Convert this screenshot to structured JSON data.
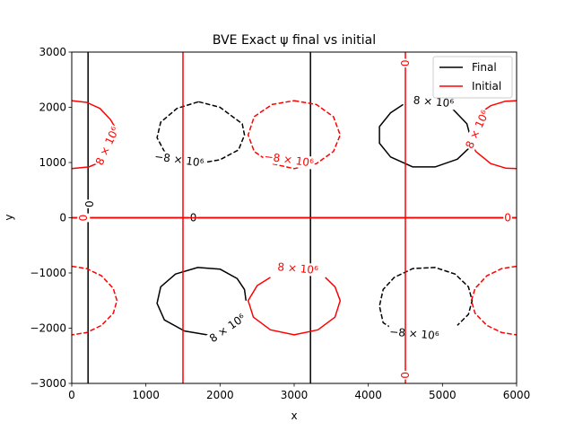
{
  "chart_data": {
    "type": "contour",
    "title": "BVE Exact ψ final vs initial",
    "xlabel": "x",
    "ylabel": "y",
    "xlim": [
      0,
      6000
    ],
    "ylim": [
      -3000,
      3000
    ],
    "xticks": [
      0,
      1000,
      2000,
      3000,
      4000,
      5000,
      6000
    ],
    "xtick_labels": [
      "0",
      "1000",
      "2000",
      "3000",
      "4000",
      "5000",
      "6000"
    ],
    "yticks": [
      -3000,
      -2000,
      -1000,
      0,
      1000,
      2000,
      3000
    ],
    "ytick_labels": [
      "−3000",
      "−2000",
      "−1000",
      "0",
      "1000",
      "2000",
      "3000"
    ],
    "grid": false,
    "legend_position": "upper right",
    "series": [
      {
        "name": "Final",
        "color": "#000000",
        "zero_contours": {
          "vertical_x": [
            220,
            3220
          ],
          "horizontal_y": [
            0
          ]
        },
        "level_contours": [
          {
            "level": "-8e6",
            "sign": "negative",
            "dashed": true,
            "points": [
              [
                1710,
                2100
              ],
              [
                2000,
                2000
              ],
              [
                2300,
                1700
              ],
              [
                2330,
                1500
              ],
              [
                2250,
                1230
              ],
              [
                2000,
                1050
              ],
              [
                1700,
                980
              ],
              [
                1440,
                1060
              ],
              [
                1250,
                1200
              ],
              [
                1150,
                1450
              ],
              [
                1200,
                1730
              ],
              [
                1420,
                1980
              ],
              [
                1710,
                2100
              ]
            ]
          },
          {
            "level": "8e6",
            "sign": "positive",
            "dashed": false,
            "points": [
              [
                4470,
                2050
              ],
              [
                4300,
                1900
              ],
              [
                4150,
                1650
              ],
              [
                4150,
                1350
              ],
              [
                4300,
                1100
              ],
              [
                4600,
                920
              ],
              [
                4900,
                920
              ],
              [
                5200,
                1060
              ],
              [
                5350,
                1250
              ],
              [
                5380,
                1450
              ],
              [
                5330,
                1700
              ],
              [
                5130,
                1980
              ],
              [
                5020,
                2030
              ]
            ]
          },
          {
            "level": "8e6",
            "sign": "positive",
            "dashed": false,
            "points": [
              [
                1870,
                -2130
              ],
              [
                1520,
                -2050
              ],
              [
                1250,
                -1850
              ],
              [
                1150,
                -1550
              ],
              [
                1200,
                -1250
              ],
              [
                1400,
                -1020
              ],
              [
                1700,
                -900
              ],
              [
                2000,
                -930
              ],
              [
                2230,
                -1100
              ],
              [
                2330,
                -1300
              ],
              [
                2350,
                -1500
              ]
            ]
          },
          {
            "level": "-8e6",
            "sign": "negative",
            "dashed": true,
            "points": [
              [
                4400,
                -2070
              ],
              [
                4200,
                -1900
              ],
              [
                4150,
                -1600
              ],
              [
                4200,
                -1300
              ],
              [
                4350,
                -1080
              ],
              [
                4600,
                -920
              ],
              [
                4900,
                -900
              ],
              [
                5170,
                -1020
              ],
              [
                5350,
                -1250
              ],
              [
                5400,
                -1500
              ],
              [
                5350,
                -1750
              ],
              [
                5200,
                -1950
              ]
            ]
          }
        ],
        "labels": [
          {
            "text": "−8 × 10⁶",
            "x": 1450,
            "y": 1050,
            "rotate": 8
          },
          {
            "text": "8 × 10⁶",
            "x": 4880,
            "y": 2100,
            "rotate": 5
          },
          {
            "text": "8 × 10⁶",
            "x": 2100,
            "y": -2000,
            "rotate": -35
          },
          {
            "text": "−8 × 10⁶",
            "x": 4620,
            "y": -2100,
            "rotate": 5
          },
          {
            "text": "0",
            "x": 1640,
            "y": 0,
            "rotate": 0
          },
          {
            "text": "0",
            "x": 240,
            "y": 250,
            "rotate": -90
          }
        ]
      },
      {
        "name": "Initial",
        "color": "#ff0000",
        "zero_contours": {
          "vertical_x": [
            1500,
            4500
          ],
          "horizontal_y": [
            0
          ]
        },
        "level_contours": [
          {
            "level": "8e6",
            "sign": "positive",
            "dashed": false,
            "points": [
              [
                0,
                2120
              ],
              [
                200,
                2090
              ],
              [
                380,
                1980
              ],
              [
                520,
                1780
              ],
              [
                580,
                1650
              ]
            ]
          },
          {
            "level": "8e6",
            "sign": "positive",
            "dashed": false,
            "points": [
              [
                370,
                1000
              ],
              [
                230,
                920
              ],
              [
                0,
                890
              ]
            ]
          },
          {
            "level": "-8e6",
            "sign": "negative",
            "dashed": true,
            "points": [
              [
                3000,
                2120
              ],
              [
                3300,
                2050
              ],
              [
                3530,
                1830
              ],
              [
                3620,
                1500
              ],
              [
                3530,
                1200
              ],
              [
                3300,
                980
              ],
              [
                3000,
                890
              ],
              [
                2700,
                980
              ],
              [
                2460,
                1200
              ],
              [
                2380,
                1500
              ],
              [
                2460,
                1830
              ],
              [
                2700,
                2050
              ],
              [
                3000,
                2120
              ]
            ]
          },
          {
            "level": "8e6",
            "sign": "positive",
            "dashed": false,
            "points": [
              [
                5380,
                1380
              ],
              [
                5450,
                1200
              ],
              [
                5650,
                980
              ],
              [
                5850,
                900
              ],
              [
                6000,
                890
              ]
            ]
          },
          {
            "level": "8e6",
            "sign": "positive",
            "dashed": false,
            "points": [
              [
                5480,
                1870
              ],
              [
                5650,
                2030
              ],
              [
                5850,
                2110
              ],
              [
                6000,
                2120
              ]
            ]
          },
          {
            "level": "-8e6",
            "sign": "negative",
            "dashed": true,
            "points": [
              [
                0,
                -880
              ],
              [
                200,
                -920
              ],
              [
                400,
                -1050
              ],
              [
                560,
                -1280
              ],
              [
                610,
                -1500
              ],
              [
                560,
                -1730
              ],
              [
                400,
                -1950
              ],
              [
                200,
                -2080
              ],
              [
                0,
                -2120
              ]
            ]
          },
          {
            "level": "8e6",
            "sign": "positive",
            "dashed": false,
            "points": [
              [
                2680,
                -1080
              ],
              [
                2500,
                -1230
              ],
              [
                2380,
                -1500
              ],
              [
                2450,
                -1800
              ],
              [
                2680,
                -2030
              ],
              [
                3000,
                -2120
              ],
              [
                3320,
                -2030
              ],
              [
                3550,
                -1800
              ],
              [
                3620,
                -1500
              ],
              [
                3550,
                -1250
              ],
              [
                3420,
                -1080
              ]
            ]
          },
          {
            "level": "-8e6",
            "sign": "negative",
            "dashed": true,
            "points": [
              [
                6000,
                -880
              ],
              [
                5800,
                -920
              ],
              [
                5600,
                -1050
              ],
              [
                5440,
                -1280
              ],
              [
                5390,
                -1500
              ],
              [
                5440,
                -1730
              ],
              [
                5600,
                -1950
              ],
              [
                5800,
                -2080
              ],
              [
                6000,
                -2120
              ]
            ]
          }
        ],
        "labels": [
          {
            "text": "8 × 10⁶",
            "x": 480,
            "y": 1300,
            "rotate": -65
          },
          {
            "text": "−8 × 10⁶",
            "x": 2930,
            "y": 1050,
            "rotate": 8
          },
          {
            "text": "8 × 10⁶",
            "x": 5470,
            "y": 1600,
            "rotate": -65
          },
          {
            "text": "8 × 10⁶",
            "x": 3050,
            "y": -920,
            "rotate": 5
          },
          {
            "text": "0",
            "x": 160,
            "y": 0,
            "rotate": -90
          },
          {
            "text": "0",
            "x": 5880,
            "y": 0,
            "rotate": 0
          },
          {
            "text": "0",
            "x": 4500,
            "y": 2800,
            "rotate": -90
          },
          {
            "text": "0",
            "x": 4500,
            "y": -2850,
            "rotate": -90
          }
        ]
      }
    ]
  }
}
